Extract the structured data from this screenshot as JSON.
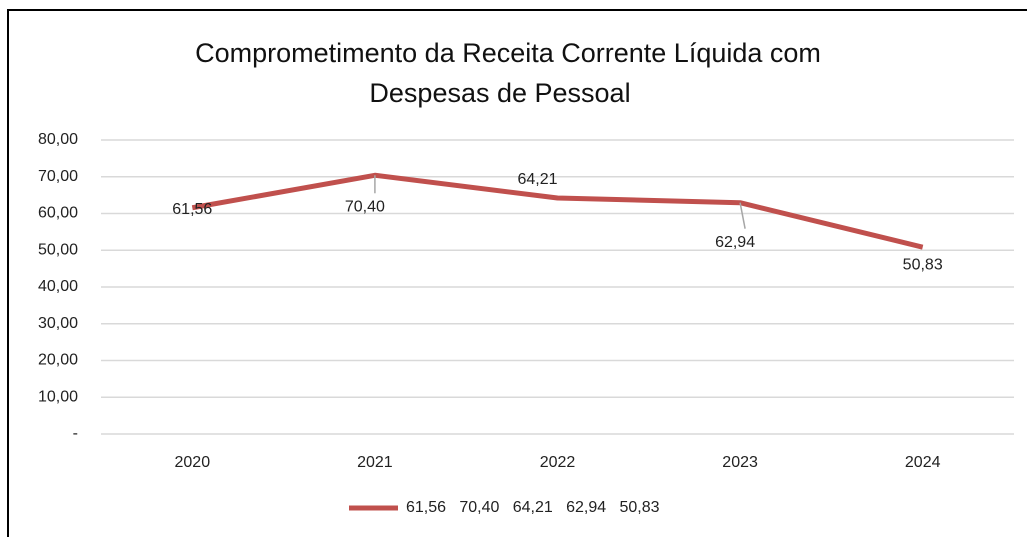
{
  "chart_data": {
    "type": "line",
    "title": [
      "Comprometimento da Receita Corrente Líquida com",
      "Despesas de Pessoal"
    ],
    "categories": [
      "2020",
      "2021",
      "2022",
      "2023",
      "2024"
    ],
    "series": [
      {
        "name": "61,56   70,40   64,21   62,94   50,83",
        "color": "#c0504d",
        "values": [
          61.56,
          70.4,
          64.21,
          62.94,
          50.83
        ],
        "value_labels": [
          "61,56",
          "70,40",
          "64,21",
          "62,94",
          "50,83"
        ]
      }
    ],
    "ylim": [
      0,
      80
    ],
    "yticks": [
      {
        "value": 0,
        "label": "-"
      },
      {
        "value": 10,
        "label": "10,00"
      },
      {
        "value": 20,
        "label": "20,00"
      },
      {
        "value": 30,
        "label": "30,00"
      },
      {
        "value": 40,
        "label": "40,00"
      },
      {
        "value": 50,
        "label": "50,00"
      },
      {
        "value": 60,
        "label": "60,00"
      },
      {
        "value": 70,
        "label": "70,00"
      },
      {
        "value": 80,
        "label": "80,00"
      }
    ],
    "grid": true,
    "legend": "bottom"
  }
}
